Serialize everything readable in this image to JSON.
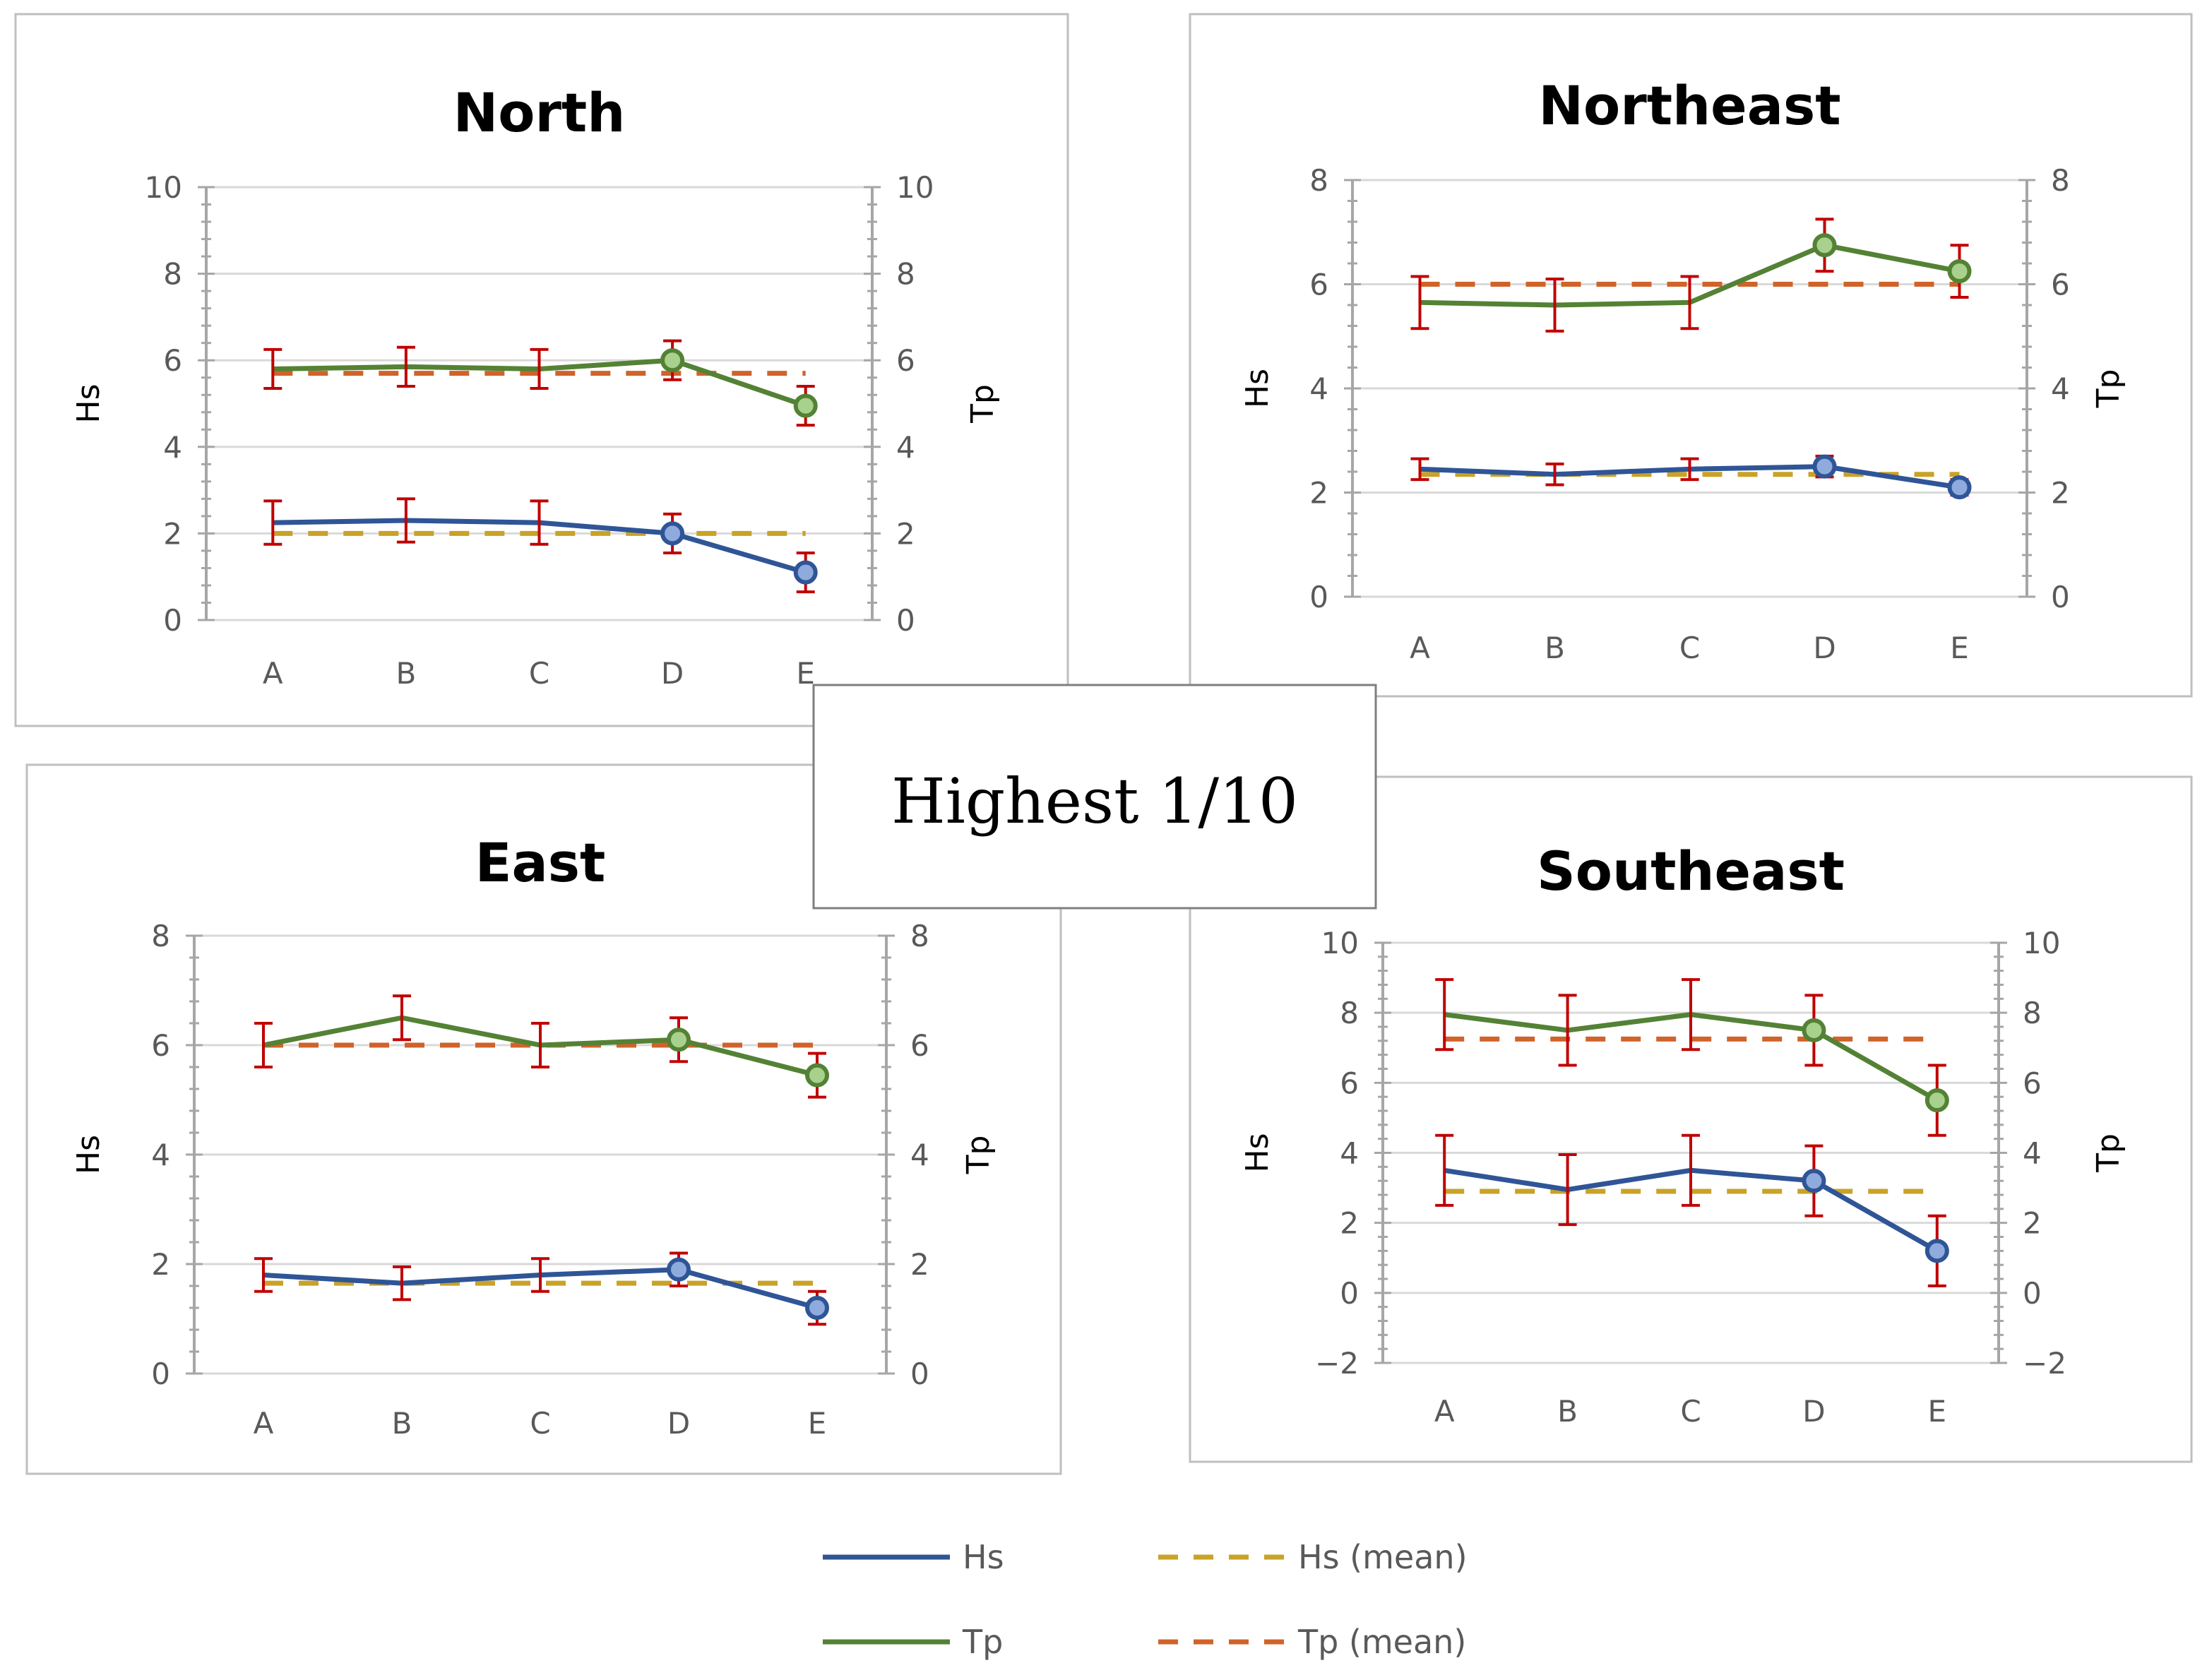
{
  "center_label": "Highest 1/10",
  "legend": [
    {
      "key": "hs",
      "label": "Hs",
      "color": "#2F5597",
      "dashed": false
    },
    {
      "key": "hs_mean",
      "label": "Hs (mean)",
      "color": "#C9A227",
      "dashed": true
    },
    {
      "key": "tp",
      "label": "Tp",
      "color": "#548235",
      "dashed": false
    },
    {
      "key": "tp_mean",
      "label": "Tp (mean)",
      "color": "#D0632A",
      "dashed": true
    }
  ],
  "colors": {
    "hs": "#2F5597",
    "hs_marker_fill": "#8FAADC",
    "tp": "#548235",
    "tp_marker_fill": "#A9D18E",
    "hs_mean": "#C9A227",
    "tp_mean": "#D0632A",
    "error_bar": "#C00000",
    "axis": "#A6A6A6",
    "grid": "#D9D9D9",
    "tick_text": "#595959",
    "panel_border": "#BFBFBF"
  },
  "chart_data": [
    {
      "type": "line",
      "title": "North",
      "categories": [
        "A",
        "B",
        "C",
        "D",
        "E"
      ],
      "ylabel": "Hs",
      "y2label": "Tp",
      "ylim": [
        0,
        10
      ],
      "yticks": [
        0,
        2,
        4,
        6,
        8,
        10
      ],
      "grid": true,
      "series": [
        {
          "name": "Hs",
          "values": [
            2.25,
            2.3,
            2.25,
            2.0,
            1.1
          ],
          "error": [
            0.5,
            0.5,
            0.5,
            0.45,
            0.45
          ],
          "markers": [
            3,
            4
          ]
        },
        {
          "name": "Tp",
          "values": [
            5.8,
            5.85,
            5.8,
            6.0,
            4.95
          ],
          "error": [
            0.45,
            0.45,
            0.45,
            0.45,
            0.45
          ],
          "markers": [
            3,
            4
          ]
        },
        {
          "name": "Hs (mean)",
          "values": [
            2.0,
            2.0,
            2.0,
            2.0,
            2.0
          ]
        },
        {
          "name": "Tp (mean)",
          "values": [
            5.7,
            5.7,
            5.7,
            5.7,
            5.7
          ]
        }
      ]
    },
    {
      "type": "line",
      "title": "Northeast",
      "categories": [
        "A",
        "B",
        "C",
        "D",
        "E"
      ],
      "ylabel": "Hs",
      "y2label": "Tp",
      "ylim": [
        0,
        8
      ],
      "yticks": [
        0,
        2,
        4,
        6,
        8
      ],
      "grid": true,
      "series": [
        {
          "name": "Hs",
          "values": [
            2.45,
            2.35,
            2.45,
            2.5,
            2.1
          ],
          "error": [
            0.2,
            0.2,
            0.2,
            0.2,
            0.15
          ],
          "markers": [
            3,
            4
          ]
        },
        {
          "name": "Tp",
          "values": [
            5.65,
            5.6,
            5.65,
            6.75,
            6.25
          ],
          "error": [
            0.5,
            0.5,
            0.5,
            0.5,
            0.5
          ],
          "markers": [
            3,
            4
          ]
        },
        {
          "name": "Hs (mean)",
          "values": [
            2.35,
            2.35,
            2.35,
            2.35,
            2.35
          ]
        },
        {
          "name": "Tp (mean)",
          "values": [
            6.0,
            6.0,
            6.0,
            6.0,
            6.0
          ]
        }
      ]
    },
    {
      "type": "line",
      "title": "East",
      "categories": [
        "A",
        "B",
        "C",
        "D",
        "E"
      ],
      "ylabel": "Hs",
      "y2label": "Tp",
      "ylim": [
        0,
        8
      ],
      "yticks": [
        0,
        2,
        4,
        6,
        8
      ],
      "grid": true,
      "series": [
        {
          "name": "Hs",
          "values": [
            1.8,
            1.65,
            1.8,
            1.9,
            1.2
          ],
          "error": [
            0.3,
            0.3,
            0.3,
            0.3,
            0.3
          ],
          "markers": [
            3,
            4
          ]
        },
        {
          "name": "Tp",
          "values": [
            6.0,
            6.5,
            6.0,
            6.1,
            5.45
          ],
          "error": [
            0.4,
            0.4,
            0.4,
            0.4,
            0.4
          ],
          "markers": [
            3,
            4
          ]
        },
        {
          "name": "Hs (mean)",
          "values": [
            1.65,
            1.65,
            1.65,
            1.65,
            1.65
          ]
        },
        {
          "name": "Tp (mean)",
          "values": [
            6.0,
            6.0,
            6.0,
            6.0,
            6.0
          ]
        }
      ]
    },
    {
      "type": "line",
      "title": "Southeast",
      "categories": [
        "A",
        "B",
        "C",
        "D",
        "E"
      ],
      "ylabel": "Hs",
      "y2label": "Tp",
      "ylim": [
        -2,
        10
      ],
      "yticks": [
        -2,
        0,
        2,
        4,
        6,
        8,
        10
      ],
      "ytick_labels": [
        "−2",
        "0",
        "2",
        "4",
        "6",
        "8",
        "10"
      ],
      "grid": true,
      "series": [
        {
          "name": "Hs",
          "values": [
            3.5,
            2.95,
            3.5,
            3.2,
            1.2
          ],
          "error": [
            1.0,
            1.0,
            1.0,
            1.0,
            1.0
          ],
          "markers": [
            3,
            4
          ]
        },
        {
          "name": "Tp",
          "values": [
            7.95,
            7.5,
            7.95,
            7.5,
            5.5
          ],
          "error": [
            1.0,
            1.0,
            1.0,
            1.0,
            1.0
          ],
          "markers": [
            3,
            4
          ]
        },
        {
          "name": "Hs (mean)",
          "values": [
            2.9,
            2.9,
            2.9,
            2.9,
            2.9
          ]
        },
        {
          "name": "Tp (mean)",
          "values": [
            7.25,
            7.25,
            7.25,
            7.25,
            7.25
          ]
        }
      ]
    }
  ]
}
